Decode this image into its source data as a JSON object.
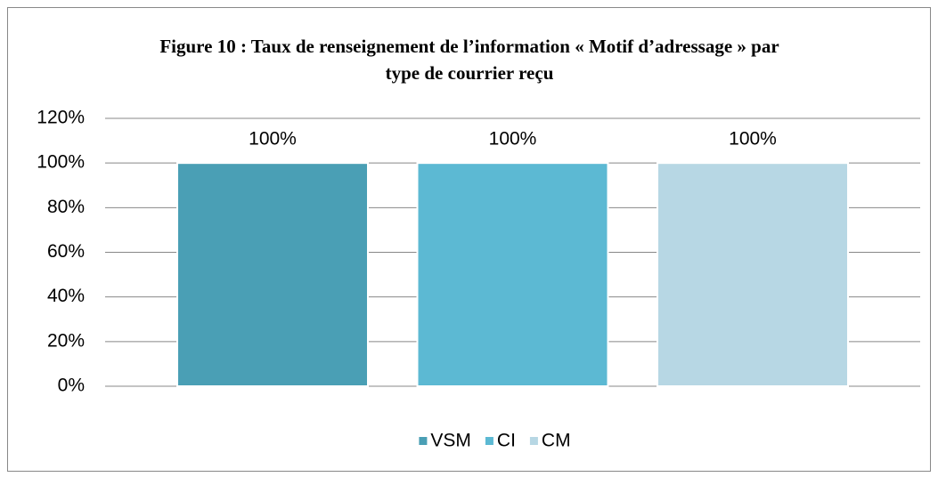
{
  "chart_data": {
    "type": "bar",
    "title": "Figure 10 : Taux de renseignement de l’information « Motif d’adressage » par type de courrier reçu",
    "categories": [
      null
    ],
    "series": [
      {
        "name": "VSM",
        "color": "#4a9fb5",
        "values": [
          100
        ],
        "value_labels": [
          "100%"
        ]
      },
      {
        "name": "CI",
        "color": "#5cb9d3",
        "values": [
          100
        ],
        "value_labels": [
          "100%"
        ]
      },
      {
        "name": "CM",
        "color": "#b7d7e4",
        "values": [
          100
        ],
        "value_labels": [
          "100%"
        ]
      }
    ],
    "ylim": [
      0,
      120
    ],
    "yticks": [
      {
        "value": 0,
        "label": "0%"
      },
      {
        "value": 20,
        "label": "20%"
      },
      {
        "value": 40,
        "label": "40%"
      },
      {
        "value": 60,
        "label": "60%"
      },
      {
        "value": 80,
        "label": "80%"
      },
      {
        "value": 100,
        "label": "100%"
      },
      {
        "value": 120,
        "label": "120%"
      }
    ],
    "grid": true,
    "legend": "bottom"
  }
}
